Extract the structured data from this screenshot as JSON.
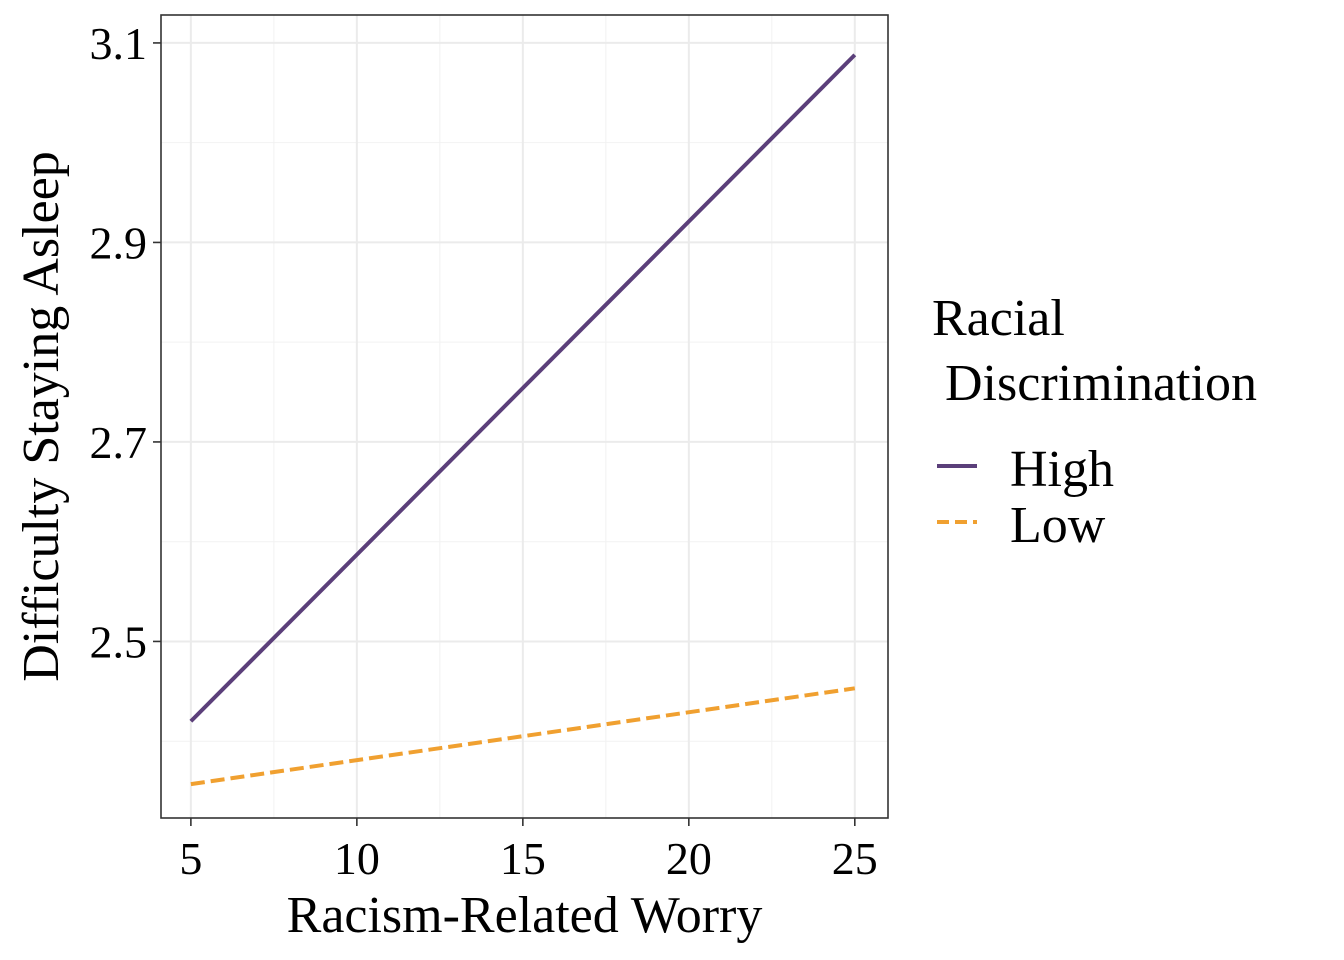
{
  "chart_data": {
    "type": "line",
    "xlabel": "Racism-Related Worry",
    "ylabel": "Difficulty Staying Asleep",
    "xlim": [
      4.1,
      26.0
    ],
    "ylim": [
      2.323,
      3.128
    ],
    "x_ticks": [
      5,
      10,
      15,
      20,
      25
    ],
    "x_tick_labels": [
      "5",
      "10",
      "15",
      "20",
      "25"
    ],
    "y_ticks": [
      2.5,
      2.7,
      2.9,
      3.1
    ],
    "y_tick_labels": [
      "2.5",
      "2.7",
      "2.9",
      "3.1"
    ],
    "x_minor_ticks": [
      7.5,
      12.5,
      17.5,
      22.5
    ],
    "y_minor_ticks": [
      2.4,
      2.6,
      2.8,
      3.0
    ],
    "grid": true,
    "legend": {
      "title_line1": "Racial",
      "title_line2": " Discrimination",
      "position": "right"
    },
    "series": [
      {
        "name": "High",
        "color": "#5b3f7a",
        "dash": "solid",
        "x": [
          5,
          25
        ],
        "y": [
          2.42,
          3.088
        ]
      },
      {
        "name": "Low",
        "color": "#f0a030",
        "dash": "dashed",
        "x": [
          5,
          25
        ],
        "y": [
          2.357,
          2.453
        ]
      }
    ]
  }
}
